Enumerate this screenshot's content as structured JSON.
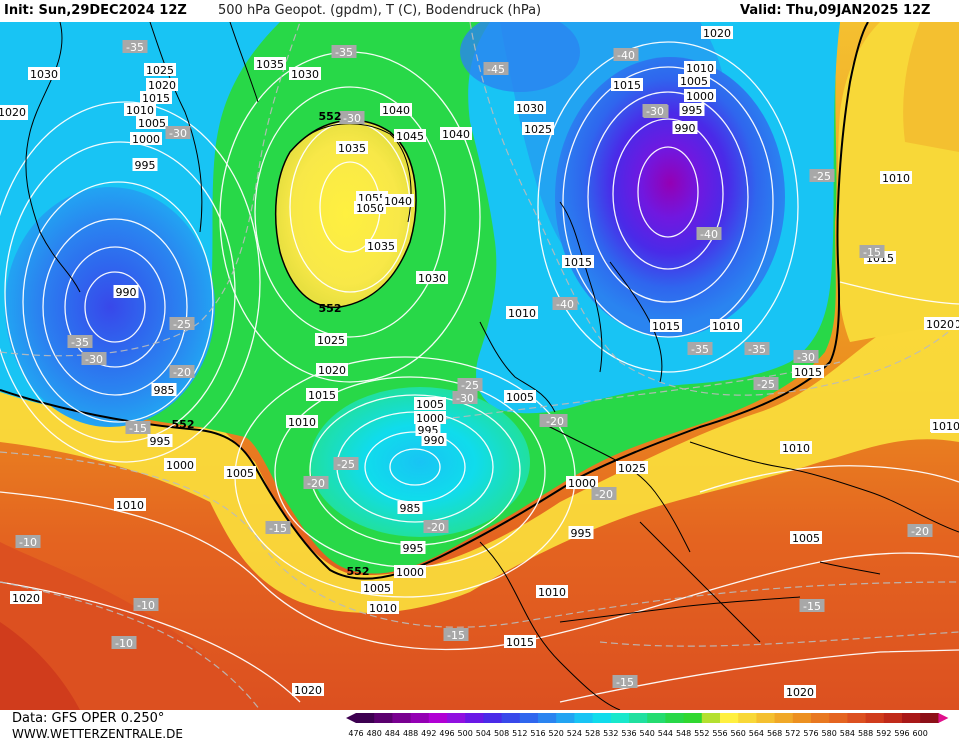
{
  "header": {
    "init": "Init: Sun,29DEC2024 12Z",
    "title": "500 hPa Geopot. (gpdm), T (C), Bodendruck (hPa)",
    "valid": "Valid: Thu,09JAN2025 12Z"
  },
  "footer": {
    "source_line1": "Data: GFS OPER 0.250°",
    "source_line2": "WWW.WETTERZENTRALE.DE"
  },
  "colorbar": {
    "ticks": [
      "476",
      "480",
      "484",
      "488",
      "492",
      "496",
      "500",
      "504",
      "508",
      "512",
      "516",
      "520",
      "524",
      "528",
      "532",
      "536",
      "540",
      "544",
      "548",
      "552",
      "556",
      "560",
      "564",
      "568",
      "572",
      "576",
      "580",
      "584",
      "588",
      "592",
      "596",
      "600"
    ],
    "colors": [
      "#3c0050",
      "#5a006e",
      "#780090",
      "#9400b4",
      "#b000d4",
      "#9010e0",
      "#6a18e6",
      "#4a2ae8",
      "#3848ea",
      "#2f66ee",
      "#2a84f0",
      "#22a4f2",
      "#18c4f4",
      "#10dcec",
      "#18e8cc",
      "#20e0a0",
      "#24dc70",
      "#28d848",
      "#30d830",
      "#b4e030",
      "#fff040",
      "#f8d838",
      "#f4c030",
      "#f0a828",
      "#ec9020",
      "#e87820",
      "#e46420",
      "#dc5020",
      "#d03c1c",
      "#c02a1a",
      "#a81818",
      "#8c1018"
    ]
  },
  "pressure_labels": [
    "1030",
    "1035",
    "1030",
    "1025",
    "1020",
    "1015",
    "1010",
    "1005",
    "1000",
    "995",
    "990",
    "985",
    "995",
    "1000",
    "1005",
    "1010",
    "1040",
    "1045",
    "1040",
    "1035",
    "1055",
    "1050",
    "1040",
    "1035",
    "1030",
    "1025",
    "1020",
    "1015",
    "1010",
    "1005",
    "1000",
    "995",
    "990",
    "985",
    "995",
    "1000",
    "1005",
    "1010",
    "1030",
    "1025",
    "1015",
    "1015",
    "1010",
    "1005",
    "1000",
    "995",
    "990",
    "1020",
    "1010",
    "1005",
    "1000",
    "995",
    "1025",
    "1015",
    "1010",
    "1010",
    "1015",
    "1010",
    "1015",
    "1005",
    "1010",
    "1015",
    "1020",
    "1020",
    "1010",
    "1015",
    "1020",
    "1020",
    "1015",
    "1010",
    "1020",
    "1020",
    "10",
    "10"
  ],
  "temperature_labels": [
    "-35",
    "-35",
    "-45",
    "-40",
    "-30",
    "-30",
    "-35",
    "-30",
    "-25",
    "-20",
    "-15",
    "-35",
    "-30",
    "-25",
    "-20",
    "-15",
    "-20",
    "-25",
    "-30",
    "-35",
    "-40",
    "-25",
    "-40",
    "-35",
    "-30",
    "-25",
    "-20",
    "-20",
    "-15",
    "-10",
    "-10",
    "-10",
    "-15",
    "-15",
    "-15",
    "-20",
    "-20"
  ],
  "isohypse_labels": [
    "552",
    "552",
    "552",
    "552"
  ]
}
